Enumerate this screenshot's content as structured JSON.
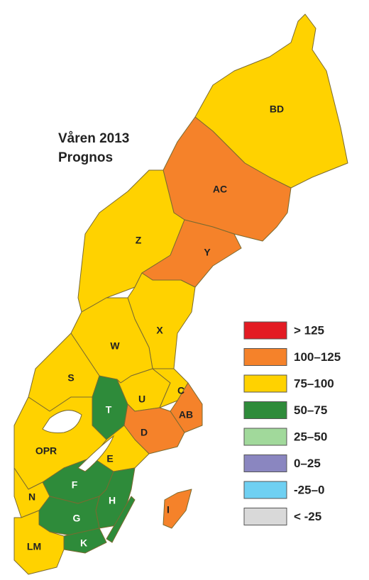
{
  "title": [
    "Våren 2013",
    "Prognos"
  ],
  "regions": [
    {
      "label": "BD",
      "color": "#ffd200"
    },
    {
      "label": "AC",
      "color": "#f5822a"
    },
    {
      "label": "Z",
      "color": "#ffd200"
    },
    {
      "label": "Y",
      "color": "#f5822a"
    },
    {
      "label": "X",
      "color": "#ffd200"
    },
    {
      "label": "W",
      "color": "#ffd200"
    },
    {
      "label": "S",
      "color": "#ffd200"
    },
    {
      "label": "T",
      "color": "#2e8b3a"
    },
    {
      "label": "U",
      "color": "#ffd200"
    },
    {
      "label": "C",
      "color": "#ffd200"
    },
    {
      "label": "AB",
      "color": "#f5822a"
    },
    {
      "label": "D",
      "color": "#f5822a"
    },
    {
      "label": "E",
      "color": "#ffd200"
    },
    {
      "label": "OPR",
      "color": "#ffd200"
    },
    {
      "label": "F",
      "color": "#2e8b3a"
    },
    {
      "label": "N",
      "color": "#ffd200"
    },
    {
      "label": "H",
      "color": "#2e8b3a"
    },
    {
      "label": "G",
      "color": "#2e8b3a"
    },
    {
      "label": "K",
      "color": "#2e8b3a"
    },
    {
      "label": "LM",
      "color": "#ffd200"
    },
    {
      "label": "I",
      "color": "#f5822a"
    }
  ],
  "legend": [
    {
      "label": "> 125",
      "color": "#e31b23"
    },
    {
      "label": "100–125",
      "color": "#f5822a"
    },
    {
      "label": "75–100",
      "color": "#ffd200"
    },
    {
      "label": "50–75",
      "color": "#2e8b3a"
    },
    {
      "label": "25–50",
      "color": "#a1d99b"
    },
    {
      "label": "0–25",
      "color": "#8a86c0"
    },
    {
      "label": "-25–0",
      "color": "#6fd0f2"
    },
    {
      "label": "< -25",
      "color": "#d9d9d9"
    }
  ]
}
